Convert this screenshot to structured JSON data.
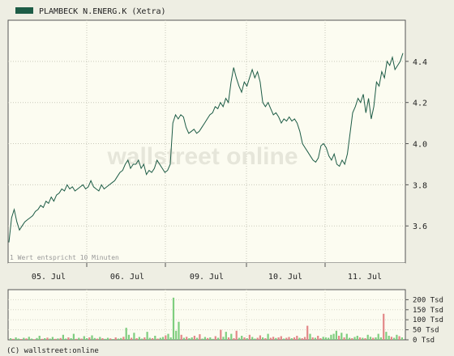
{
  "legend": {
    "label": "PLAMBECK N.ENERG.K (Xetra)",
    "color": "#1d5c46"
  },
  "note": "1 Wert entspricht 10 Minuten",
  "copyright": "(C) wallstreet:online",
  "watermark": "wallstreet online",
  "colors": {
    "background": "#eeeee3",
    "plot_background": "#fcfcf1",
    "line": "#1d5c46",
    "volume_up": "#7fce7f",
    "volume_down": "#e38888"
  },
  "chart_data": [
    {
      "type": "line",
      "title": "",
      "xlabel": "",
      "ylabel": "",
      "x_ticks": [
        "05. Jul",
        "06. Jul",
        "09. Jul",
        "10. Jul",
        "11. Jul"
      ],
      "y_ticks": [
        "3.6",
        "3.8",
        "4.0",
        "4.2",
        "4.4"
      ],
      "ylim": [
        3.42,
        4.6
      ],
      "grid": true,
      "legend_position": "top-left",
      "series": [
        {
          "name": "PLAMBECK N.ENERG.K (Xetra)",
          "values": [
            3.52,
            3.64,
            3.68,
            3.62,
            3.58,
            3.6,
            3.62,
            3.63,
            3.64,
            3.65,
            3.67,
            3.68,
            3.7,
            3.69,
            3.72,
            3.71,
            3.74,
            3.72,
            3.75,
            3.76,
            3.78,
            3.77,
            3.8,
            3.78,
            3.79,
            3.77,
            3.78,
            3.79,
            3.8,
            3.78,
            3.79,
            3.82,
            3.79,
            3.78,
            3.77,
            3.8,
            3.78,
            3.79,
            3.8,
            3.81,
            3.82,
            3.84,
            3.86,
            3.87,
            3.9,
            3.92,
            3.88,
            3.9,
            3.9,
            3.92,
            3.88,
            3.9,
            3.85,
            3.87,
            3.86,
            3.88,
            3.92,
            3.9,
            3.88,
            3.86,
            3.87,
            3.9,
            4.1,
            4.14,
            4.12,
            4.14,
            4.13,
            4.08,
            4.05,
            4.06,
            4.07,
            4.05,
            4.06,
            4.08,
            4.1,
            4.12,
            4.14,
            4.15,
            4.18,
            4.17,
            4.2,
            4.18,
            4.22,
            4.2,
            4.3,
            4.37,
            4.32,
            4.28,
            4.25,
            4.3,
            4.28,
            4.32,
            4.36,
            4.32,
            4.35,
            4.3,
            4.2,
            4.18,
            4.2,
            4.17,
            4.14,
            4.15,
            4.13,
            4.1,
            4.12,
            4.11,
            4.13,
            4.11,
            4.12,
            4.1,
            4.06,
            4.0,
            3.98,
            3.96,
            3.94,
            3.92,
            3.91,
            3.93,
            3.99,
            4.0,
            3.98,
            3.94,
            3.92,
            3.95,
            3.9,
            3.89,
            3.92,
            3.9,
            3.95,
            4.05,
            4.15,
            4.18,
            4.22,
            4.2,
            4.24,
            4.15,
            4.22,
            4.12,
            4.18,
            4.3,
            4.28,
            4.35,
            4.32,
            4.4,
            4.38,
            4.42,
            4.36,
            4.38,
            4.4,
            4.44
          ]
        }
      ]
    },
    {
      "type": "bar",
      "title": "",
      "xlabel": "",
      "ylabel": "",
      "y_ticks": [
        "0 Tsd",
        "50 Tsd",
        "100 Tsd",
        "150 Tsd",
        "200 Tsd"
      ],
      "ylim": [
        0,
        250
      ],
      "unit": "Tsd",
      "series": [
        {
          "name": "",
          "values": [
            8,
            5,
            12,
            6,
            4,
            10,
            7,
            15,
            6,
            3,
            9,
            20,
            5,
            8,
            11,
            6,
            14,
            5,
            7,
            9,
            25,
            6,
            12,
            8,
            30,
            5,
            10,
            6,
            18,
            8,
            12,
            22,
            9,
            6,
            14,
            8,
            5,
            10,
            7,
            4,
            12,
            6,
            9,
            15,
            60,
            25,
            10,
            35,
            8,
            14,
            6,
            12,
            40,
            10,
            8,
            20,
            6,
            10,
            14,
            22,
            30,
            12,
            210,
            45,
            90,
            25,
            10,
            15,
            8,
            12,
            20,
            10,
            28,
            6,
            14,
            9,
            12,
            5,
            18,
            10,
            50,
            15,
            40,
            12,
            30,
            8,
            45,
            10,
            20,
            12,
            8,
            25,
            14,
            6,
            10,
            22,
            12,
            8,
            30,
            10,
            15,
            9,
            12,
            18,
            6,
            10,
            14,
            8,
            12,
            20,
            10,
            8,
            14,
            70,
            30,
            12,
            10,
            20,
            8,
            15,
            12,
            10,
            25,
            30,
            45,
            20,
            35,
            12,
            30,
            10,
            8,
            14,
            20,
            12,
            10,
            8,
            25,
            15,
            10,
            12,
            30,
            12,
            130,
            40,
            20,
            15,
            10,
            25,
            18,
            12
          ],
          "direction": [
            1,
            0,
            1,
            1,
            0,
            1,
            0,
            1,
            1,
            0,
            1,
            1,
            0,
            1,
            0,
            1,
            1,
            0,
            1,
            0,
            1,
            1,
            0,
            1,
            1,
            0,
            1,
            0,
            1,
            1,
            0,
            1,
            1,
            0,
            1,
            0,
            1,
            1,
            0,
            1,
            0,
            1,
            1,
            0,
            1,
            1,
            0,
            1,
            0,
            1,
            1,
            0,
            1,
            1,
            0,
            1,
            0,
            1,
            1,
            0,
            1,
            1,
            1,
            1,
            1,
            0,
            1,
            0,
            1,
            1,
            0,
            1,
            0,
            1,
            1,
            0,
            1,
            1,
            0,
            1,
            0,
            1,
            1,
            0,
            1,
            0,
            0,
            1,
            1,
            0,
            1,
            0,
            1,
            1,
            0,
            0,
            1,
            0,
            1,
            0,
            0,
            1,
            0,
            0,
            1,
            0,
            0,
            1,
            0,
            0,
            1,
            0,
            0,
            0,
            1,
            0,
            1,
            0,
            0,
            1,
            1,
            1,
            1,
            1,
            1,
            0,
            1,
            0,
            1,
            1,
            0,
            1,
            1,
            0,
            1,
            0,
            1,
            1,
            0,
            1,
            1,
            1,
            0,
            1,
            1,
            0,
            1,
            1,
            0,
            1
          ]
        }
      ]
    }
  ]
}
